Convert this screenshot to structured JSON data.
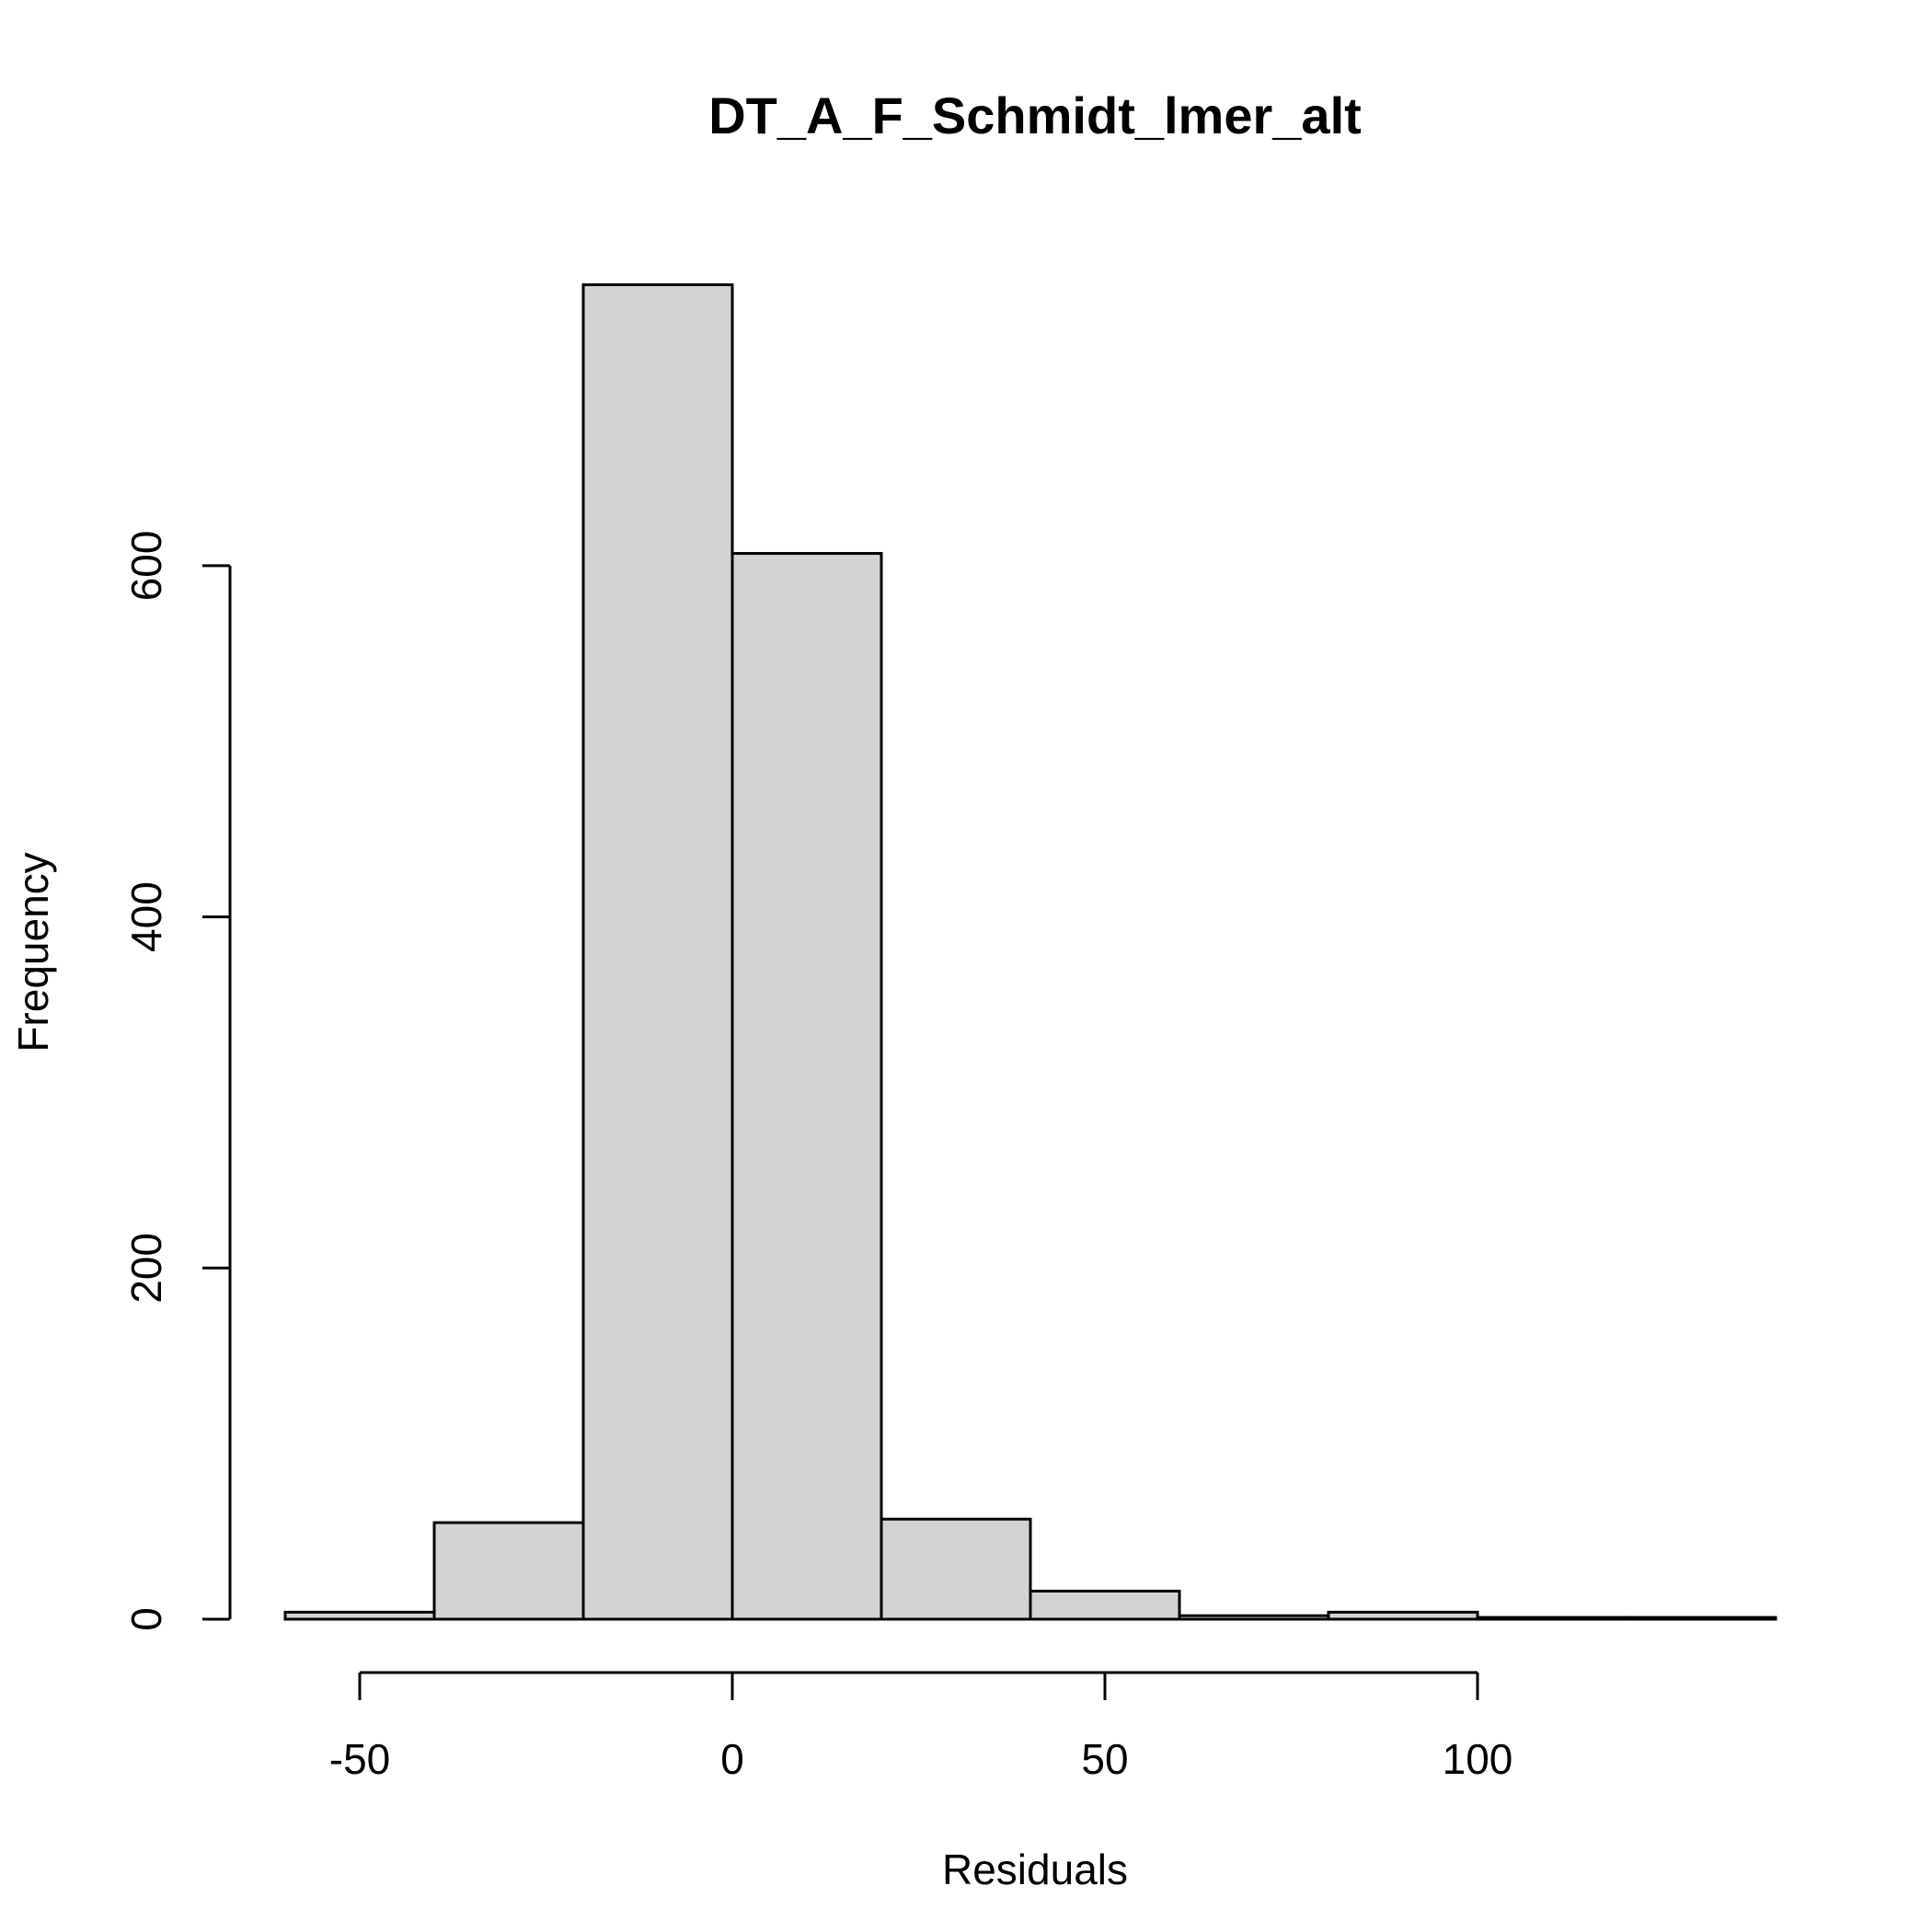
{
  "chart_data": {
    "type": "bar",
    "title": "DT_A_F_Schmidt_lmer_alt",
    "xlabel": "Residuals",
    "ylabel": "Frequency",
    "bins": [
      {
        "x0": -60,
        "x1": -40,
        "count": 4
      },
      {
        "x0": -40,
        "x1": -20,
        "count": 55
      },
      {
        "x0": -20,
        "x1": 0,
        "count": 760
      },
      {
        "x0": 0,
        "x1": 20,
        "count": 607
      },
      {
        "x0": 20,
        "x1": 40,
        "count": 57
      },
      {
        "x0": 40,
        "x1": 60,
        "count": 16
      },
      {
        "x0": 60,
        "x1": 80,
        "count": 2
      },
      {
        "x0": 80,
        "x1": 100,
        "count": 4
      },
      {
        "x0": 100,
        "x1": 120,
        "count": 1
      },
      {
        "x0": 120,
        "x1": 140,
        "count": 1
      }
    ],
    "xticks": [
      -50,
      0,
      50,
      100
    ],
    "yticks": [
      0,
      200,
      400,
      600
    ],
    "xlim": [
      -60,
      140
    ],
    "ylim": [
      0,
      760
    ],
    "grid": false,
    "legend": "none"
  }
}
